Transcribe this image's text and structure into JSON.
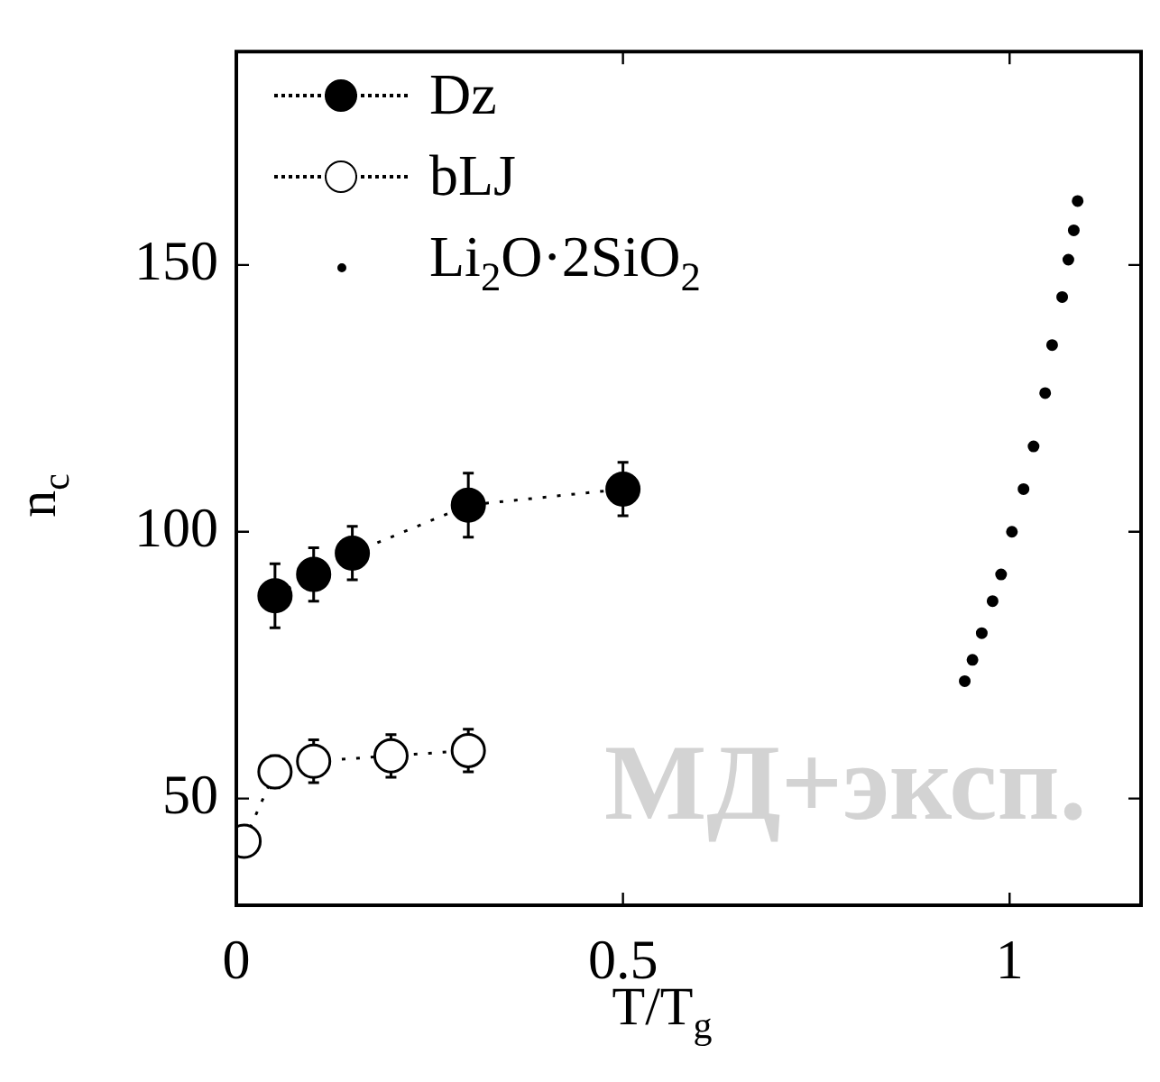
{
  "chart_data": {
    "type": "scatter",
    "xlabel": "T/T$_{g}$",
    "ylabel": "n$_{c}$",
    "xlim": [
      0,
      1.17
    ],
    "ylim": [
      30,
      190
    ],
    "xticks": [
      0,
      0.5,
      1
    ],
    "yticks": [
      50,
      100,
      150
    ],
    "grid": false,
    "legend": "top left",
    "annotations": [
      "МД+эксп."
    ],
    "series": [
      {
        "name": "Dz",
        "type": "line",
        "color": "#000000",
        "marker": "circle",
        "line_style": "dotted",
        "x": [
          0.05,
          0.1,
          0.15,
          0.3,
          0.5
        ],
        "values": [
          88,
          92,
          96,
          105,
          108
        ],
        "errors": [
          6,
          5,
          5,
          6,
          5
        ]
      },
      {
        "name": "bLJ",
        "type": "line",
        "color": "#ffffff",
        "marker": "circle",
        "line_style": "dotted",
        "x": [
          0.01,
          0.05,
          0.1,
          0.2,
          0.3
        ],
        "values": [
          42,
          55,
          57,
          58,
          59
        ],
        "errors": [
          null,
          3,
          4,
          4,
          4
        ]
      },
      {
        "name": "Li$_{2}$O·2SiO$_{2}$",
        "type": "scatter",
        "color": "#000000",
        "marker": "circle",
        "x": [
          1.088,
          1.083,
          1.076,
          1.068,
          1.055,
          1.046,
          1.031,
          1.018,
          1.003,
          0.989,
          0.978,
          0.964,
          0.952,
          0.942
        ],
        "values": [
          162,
          156.5,
          151,
          144,
          135,
          126,
          116,
          108,
          100,
          92,
          87,
          81,
          76,
          72
        ]
      }
    ]
  }
}
